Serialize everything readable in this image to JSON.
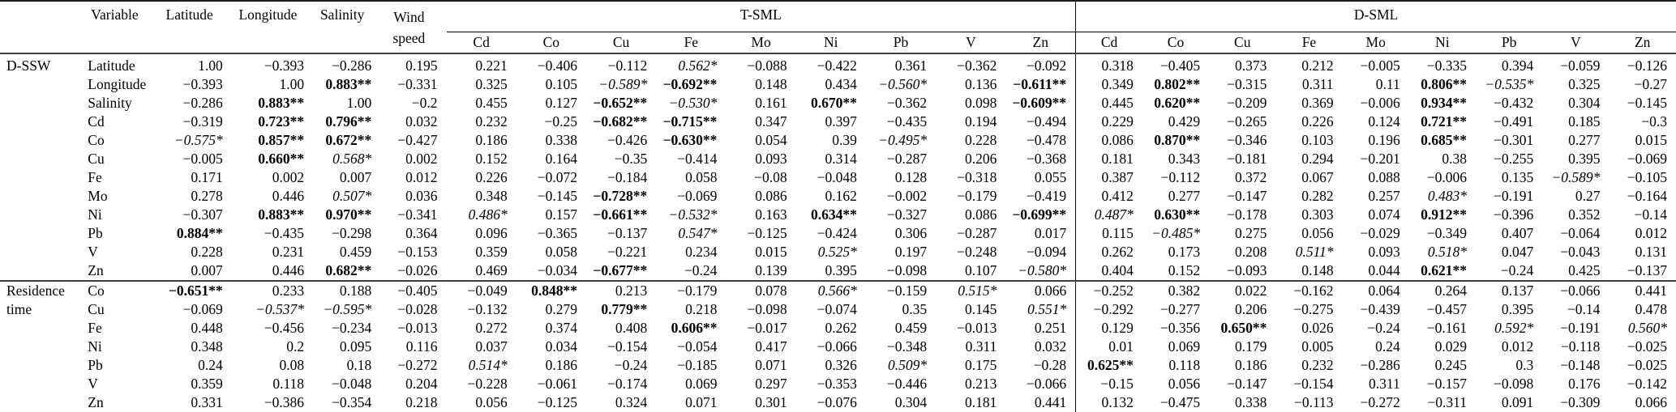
{
  "colors": {
    "background": "#ffffff",
    "text": "#000000",
    "rule_heavy": "#1a1a1a",
    "rule_light": "#3d3d3d"
  },
  "table": {
    "header": {
      "variable_label": "Variable",
      "env_cols": [
        "Latitude",
        "Longitude",
        "Salinity"
      ],
      "wind_col": {
        "line1": "Wind",
        "line2": "speed"
      },
      "groups": [
        {
          "label": "T-SML"
        },
        {
          "label": "D-SML"
        }
      ],
      "metal_cols": [
        "Cd",
        "Co",
        "Cu",
        "Fe",
        "Mo",
        "Ni",
        "Pb",
        "V",
        "Zn"
      ]
    },
    "notes": {
      "bold_marker": "**",
      "italic_marker": "*"
    },
    "sections": [
      {
        "label": "D-SSW",
        "rows": [
          {
            "variable": "Latitude",
            "values": [
              "1.00",
              "−0.393",
              "−0.286",
              "0.195",
              "0.221",
              "−0.406",
              "−0.112",
              "0.562*",
              "−0.088",
              "−0.422",
              "0.361",
              "−0.362",
              "−0.092",
              "0.318",
              "−0.405",
              "0.373",
              "0.212",
              "−0.005",
              "−0.335",
              "0.394",
              "−0.059",
              "−0.126"
            ]
          },
          {
            "variable": "Longitude",
            "values": [
              "−0.393",
              "1.00",
              "0.883**",
              "−0.331",
              "0.325",
              "0.105",
              "−0.589*",
              "−0.692**",
              "0.148",
              "0.434",
              "−0.560*",
              "0.136",
              "−0.611**",
              "0.349",
              "0.802**",
              "−0.315",
              "0.311",
              "0.11",
              "0.806**",
              "−0.535*",
              "0.325",
              "−0.27"
            ]
          },
          {
            "variable": "Salinity",
            "values": [
              "−0.286",
              "0.883**",
              "1.00",
              "−0.2",
              "0.455",
              "0.127",
              "−0.652**",
              "−0.530*",
              "0.161",
              "0.670**",
              "−0.362",
              "0.098",
              "−0.609**",
              "0.445",
              "0.620**",
              "−0.209",
              "0.369",
              "−0.006",
              "0.934**",
              "−0.432",
              "0.304",
              "−0.145"
            ]
          },
          {
            "variable": "Cd",
            "values": [
              "−0.319",
              "0.723**",
              "0.796**",
              "0.032",
              "0.232",
              "−0.25",
              "−0.682**",
              "−0.715**",
              "0.347",
              "0.397",
              "−0.435",
              "0.194",
              "−0.494",
              "0.229",
              "0.429",
              "−0.265",
              "0.226",
              "0.124",
              "0.721**",
              "−0.491",
              "0.185",
              "−0.3"
            ]
          },
          {
            "variable": "Co",
            "values": [
              "−0.575*",
              "0.857**",
              "0.672**",
              "−0.427",
              "0.186",
              "0.338",
              "−0.426",
              "−0.630**",
              "0.054",
              "0.39",
              "−0.495*",
              "0.228",
              "−0.478",
              "0.086",
              "0.870**",
              "−0.346",
              "0.103",
              "0.196",
              "0.685**",
              "−0.301",
              "0.277",
              "0.015"
            ]
          },
          {
            "variable": "Cu",
            "values": [
              "−0.005",
              "0.660**",
              "0.568*",
              "0.002",
              "0.152",
              "0.164",
              "−0.35",
              "−0.414",
              "0.093",
              "0.314",
              "−0.287",
              "0.206",
              "−0.368",
              "0.181",
              "0.343",
              "−0.181",
              "0.294",
              "−0.201",
              "0.38",
              "−0.255",
              "0.395",
              "−0.069"
            ]
          },
          {
            "variable": "Fe",
            "values": [
              "0.171",
              "0.002",
              "0.007",
              "0.012",
              "0.226",
              "−0.072",
              "−0.184",
              "0.058",
              "−0.08",
              "−0.048",
              "0.128",
              "−0.318",
              "0.055",
              "0.387",
              "−0.112",
              "0.372",
              "0.067",
              "0.088",
              "−0.006",
              "0.135",
              "−0.589*",
              "−0.105"
            ]
          },
          {
            "variable": "Mo",
            "values": [
              "0.278",
              "0.446",
              "0.507*",
              "0.036",
              "0.348",
              "−0.145",
              "−0.728**",
              "−0.069",
              "0.086",
              "0.162",
              "−0.002",
              "−0.179",
              "−0.419",
              "0.412",
              "0.277",
              "−0.147",
              "0.282",
              "0.257",
              "0.483*",
              "−0.191",
              "0.27",
              "−0.164"
            ]
          },
          {
            "variable": "Ni",
            "values": [
              "−0.307",
              "0.883**",
              "0.970**",
              "−0.341",
              "0.486*",
              "0.157",
              "−0.661**",
              "−0.532*",
              "0.163",
              "0.634**",
              "−0.327",
              "0.086",
              "−0.699**",
              "0.487*",
              "0.630**",
              "−0.178",
              "0.303",
              "0.074",
              "0.912**",
              "−0.396",
              "0.352",
              "−0.14"
            ]
          },
          {
            "variable": "Pb",
            "values": [
              "0.884**",
              "−0.435",
              "−0.298",
              "0.364",
              "0.096",
              "−0.365",
              "−0.137",
              "0.547*",
              "−0.125",
              "−0.424",
              "0.306",
              "−0.287",
              "0.017",
              "0.115",
              "−0.485*",
              "0.275",
              "0.056",
              "−0.029",
              "−0.349",
              "0.407",
              "−0.064",
              "0.012"
            ]
          },
          {
            "variable": "V",
            "values": [
              "0.228",
              "0.231",
              "0.459",
              "−0.153",
              "0.359",
              "0.058",
              "−0.221",
              "0.234",
              "0.015",
              "0.525*",
              "0.197",
              "−0.248",
              "−0.094",
              "0.262",
              "0.173",
              "0.208",
              "0.511*",
              "0.093",
              "0.518*",
              "0.047",
              "−0.043",
              "0.131"
            ]
          },
          {
            "variable": "Zn",
            "values": [
              "0.007",
              "0.446",
              "0.682**",
              "−0.026",
              "0.469",
              "−0.034",
              "−0.677**",
              "−0.24",
              "0.139",
              "0.395",
              "−0.098",
              "0.107",
              "−0.580*",
              "0.404",
              "0.152",
              "−0.093",
              "0.148",
              "0.044",
              "0.621**",
              "−0.24",
              "0.425",
              "−0.137"
            ]
          }
        ]
      },
      {
        "label": "Residence time",
        "rows": [
          {
            "variable": "Co",
            "values": [
              "−0.651**",
              "0.233",
              "0.188",
              "−0.405",
              "−0.049",
              "0.848**",
              "0.213",
              "−0.179",
              "0.078",
              "0.566*",
              "−0.159",
              "0.515*",
              "0.066",
              "−0.252",
              "0.382",
              "0.022",
              "−0.162",
              "0.064",
              "0.264",
              "0.137",
              "−0.066",
              "0.441"
            ]
          },
          {
            "variable": "Cu",
            "values": [
              "−0.069",
              "−0.537*",
              "−0.595*",
              "−0.028",
              "−0.132",
              "0.279",
              "0.779**",
              "0.218",
              "−0.098",
              "−0.074",
              "0.35",
              "0.145",
              "0.551*",
              "−0.292",
              "−0.277",
              "0.206",
              "−0.275",
              "−0.439",
              "−0.457",
              "0.395",
              "−0.14",
              "0.478"
            ]
          },
          {
            "variable": "Fe",
            "values": [
              "0.448",
              "−0.456",
              "−0.234",
              "−0.013",
              "0.272",
              "0.374",
              "0.408",
              "0.606**",
              "−0.017",
              "0.262",
              "0.459",
              "−0.013",
              "0.251",
              "0.129",
              "−0.356",
              "0.650**",
              "0.026",
              "−0.24",
              "−0.161",
              "0.592*",
              "−0.191",
              "0.560*"
            ]
          },
          {
            "variable": "Ni",
            "values": [
              "0.348",
              "0.2",
              "0.095",
              "0.116",
              "0.037",
              "0.034",
              "−0.154",
              "−0.054",
              "0.417",
              "−0.066",
              "−0.348",
              "0.311",
              "0.032",
              "0.01",
              "0.069",
              "0.179",
              "0.005",
              "0.24",
              "0.029",
              "0.012",
              "−0.118",
              "−0.025"
            ]
          },
          {
            "variable": "Pb",
            "values": [
              "0.24",
              "0.08",
              "0.18",
              "−0.272",
              "0.514*",
              "0.186",
              "−0.24",
              "−0.185",
              "0.071",
              "0.326",
              "0.509*",
              "0.175",
              "−0.28",
              "0.625**",
              "0.118",
              "0.186",
              "0.232",
              "−0.286",
              "0.245",
              "0.3",
              "−0.148",
              "−0.025"
            ]
          },
          {
            "variable": "V",
            "values": [
              "0.359",
              "0.118",
              "−0.048",
              "0.204",
              "−0.228",
              "−0.061",
              "−0.174",
              "0.069",
              "0.297",
              "−0.353",
              "−0.446",
              "0.213",
              "−0.066",
              "−0.15",
              "0.056",
              "−0.147",
              "−0.154",
              "0.311",
              "−0.157",
              "−0.098",
              "0.176",
              "−0.142"
            ]
          },
          {
            "variable": "Zn",
            "values": [
              "0.331",
              "−0.386",
              "−0.354",
              "0.218",
              "0.056",
              "−0.125",
              "0.324",
              "0.071",
              "0.301",
              "−0.076",
              "0.304",
              "0.181",
              "0.441",
              "0.132",
              "−0.475",
              "0.338",
              "−0.113",
              "−0.272",
              "−0.311",
              "0.091",
              "−0.309",
              "0.066"
            ]
          }
        ]
      }
    ]
  }
}
